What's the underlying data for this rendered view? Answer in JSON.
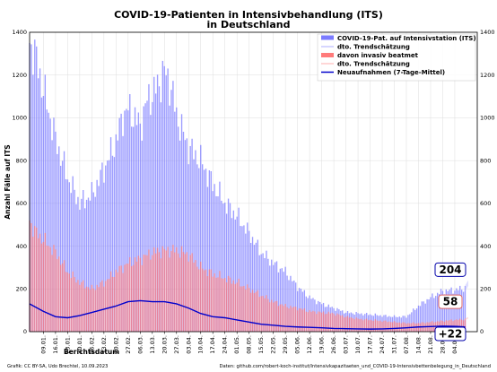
{
  "chart_data": {
    "type": "bar",
    "title": "COVID-19-Patienten in Intensivbehandlung (ITS)",
    "subtitle": "in Deutschland",
    "xlabel": "Berichtsdatum",
    "ylabel": "Anzahl Fälle auf ITS",
    "ylim": [
      0,
      1400
    ],
    "yticks": [
      0,
      200,
      400,
      600,
      800,
      1000,
      1200,
      1400
    ],
    "x_range": [
      "2023-01-01",
      "2023-09-17"
    ],
    "x_ticks": [
      "09.01.",
      "16.01.",
      "23.01.",
      "30.01.",
      "06.02.",
      "13.02.",
      "20.02.",
      "27.02.",
      "06.03.",
      "13.03.",
      "20.03.",
      "27.03.",
      "03.04.",
      "10.04.",
      "17.04.",
      "24.04.",
      "01.05.",
      "08.05.",
      "15.05.",
      "22.05.",
      "29.05.",
      "05.06.",
      "12.06.",
      "19.06.",
      "26.06.",
      "03.07.",
      "10.07.",
      "17.07.",
      "24.07.",
      "31.07.",
      "07.08.",
      "14.08.",
      "21.08.",
      "28.08.",
      "04.09."
    ],
    "x_tick_dates": [
      "2023-01-09",
      "2023-01-16",
      "2023-01-23",
      "2023-01-30",
      "2023-02-06",
      "2023-02-13",
      "2023-02-20",
      "2023-02-27",
      "2023-03-06",
      "2023-03-13",
      "2023-03-20",
      "2023-03-27",
      "2023-04-03",
      "2023-04-10",
      "2023-04-17",
      "2023-04-24",
      "2023-05-01",
      "2023-05-08",
      "2023-05-15",
      "2023-05-22",
      "2023-05-29",
      "2023-06-05",
      "2023-06-12",
      "2023-06-19",
      "2023-06-26",
      "2023-07-03",
      "2023-07-10",
      "2023-07-17",
      "2023-07-24",
      "2023-07-31",
      "2023-08-07",
      "2023-08-14",
      "2023-08-21",
      "2023-08-28",
      "2023-09-04"
    ],
    "grid": true,
    "legend_position": "top-right",
    "series": [
      {
        "name": "COVID-19-Pat. auf Intensivstation (ITS)",
        "kind": "bars",
        "color": "#7b7bff",
        "dates": [
          "2023-01-01",
          "2023-01-04",
          "2023-01-09",
          "2023-01-16",
          "2023-01-23",
          "2023-01-30",
          "2023-02-06",
          "2023-02-13",
          "2023-02-20",
          "2023-02-24",
          "2023-02-27",
          "2023-03-03",
          "2023-03-06",
          "2023-03-10",
          "2023-03-13",
          "2023-03-17",
          "2023-03-20",
          "2023-03-24",
          "2023-03-27",
          "2023-04-03",
          "2023-04-10",
          "2023-04-17",
          "2023-04-24",
          "2023-05-01",
          "2023-05-08",
          "2023-05-15",
          "2023-05-22",
          "2023-05-29",
          "2023-06-05",
          "2023-06-12",
          "2023-06-19",
          "2023-06-26",
          "2023-07-03",
          "2023-07-10",
          "2023-07-17",
          "2023-07-24",
          "2023-07-31",
          "2023-08-07",
          "2023-08-14",
          "2023-08-21",
          "2023-08-28",
          "2023-09-04",
          "2023-09-10"
        ],
        "values": [
          1350,
          1300,
          1130,
          900,
          720,
          600,
          640,
          760,
          890,
          1010,
          1040,
          1000,
          960,
          1080,
          1110,
          1160,
          1220,
          1140,
          1010,
          860,
          800,
          690,
          600,
          540,
          460,
          370,
          320,
          280,
          210,
          160,
          130,
          110,
          90,
          85,
          80,
          75,
          70,
          70,
          120,
          160,
          190,
          195,
          204
        ]
      },
      {
        "name": "davon invasiv beatmet",
        "kind": "bars",
        "color": "#ff7b7b",
        "dates": [
          "2023-01-01",
          "2023-01-04",
          "2023-01-09",
          "2023-01-16",
          "2023-01-23",
          "2023-01-30",
          "2023-02-06",
          "2023-02-13",
          "2023-02-20",
          "2023-02-27",
          "2023-03-06",
          "2023-03-13",
          "2023-03-20",
          "2023-03-27",
          "2023-04-03",
          "2023-04-10",
          "2023-04-17",
          "2023-04-24",
          "2023-05-01",
          "2023-05-08",
          "2023-05-15",
          "2023-05-22",
          "2023-05-29",
          "2023-06-05",
          "2023-06-12",
          "2023-06-19",
          "2023-06-26",
          "2023-07-03",
          "2023-07-10",
          "2023-07-17",
          "2023-07-24",
          "2023-07-31",
          "2023-08-07",
          "2023-08-14",
          "2023-08-21",
          "2023-08-28",
          "2023-09-04",
          "2023-09-10"
        ],
        "values": [
          520,
          470,
          430,
          370,
          280,
          230,
          200,
          230,
          280,
          320,
          340,
          370,
          380,
          380,
          360,
          300,
          270,
          250,
          230,
          200,
          170,
          140,
          120,
          110,
          95,
          90,
          85,
          70,
          60,
          55,
          50,
          45,
          40,
          40,
          45,
          50,
          55,
          58
        ]
      },
      {
        "name": "Neuaufnahmen (7-Tage-Mittel)",
        "kind": "line",
        "color": "#0000cc",
        "dates": [
          "2023-01-01",
          "2023-01-09",
          "2023-01-16",
          "2023-01-23",
          "2023-01-30",
          "2023-02-06",
          "2023-02-13",
          "2023-02-20",
          "2023-02-27",
          "2023-03-06",
          "2023-03-13",
          "2023-03-20",
          "2023-03-27",
          "2023-04-03",
          "2023-04-10",
          "2023-04-17",
          "2023-04-24",
          "2023-05-01",
          "2023-05-08",
          "2023-05-15",
          "2023-05-22",
          "2023-05-29",
          "2023-06-05",
          "2023-06-12",
          "2023-06-19",
          "2023-06-26",
          "2023-07-03",
          "2023-07-10",
          "2023-07-17",
          "2023-07-24",
          "2023-07-31",
          "2023-08-07",
          "2023-08-14",
          "2023-08-21",
          "2023-08-28",
          "2023-09-04",
          "2023-09-10"
        ],
        "values": [
          130,
          95,
          70,
          65,
          75,
          90,
          105,
          120,
          140,
          145,
          140,
          140,
          130,
          110,
          85,
          70,
          65,
          55,
          45,
          35,
          30,
          25,
          22,
          20,
          18,
          15,
          14,
          13,
          12,
          13,
          15,
          18,
          22,
          24,
          26,
          25,
          22
        ]
      }
    ],
    "trend_labels": [
      "dto. Trendschätzung",
      "dto. Trendschätzung"
    ],
    "trend_colors": [
      "#c8c8ff",
      "#ffc8c8"
    ],
    "callouts": [
      {
        "label": "204",
        "value": 204,
        "border": "#0000aa"
      },
      {
        "label": "58",
        "value": 58,
        "border": "#dd6666"
      },
      {
        "label": "+22",
        "value": 22,
        "border": "#0000aa"
      }
    ],
    "footer_left": "Grafik: CC BY-SA, Udo Brechtel, 10.09.2023",
    "footer_right": "Daten: github.com/robert-koch-institut/Intensivkapazitaeten_und_COVID-19-Intensivbettenbelegung_in_Deutschland"
  }
}
